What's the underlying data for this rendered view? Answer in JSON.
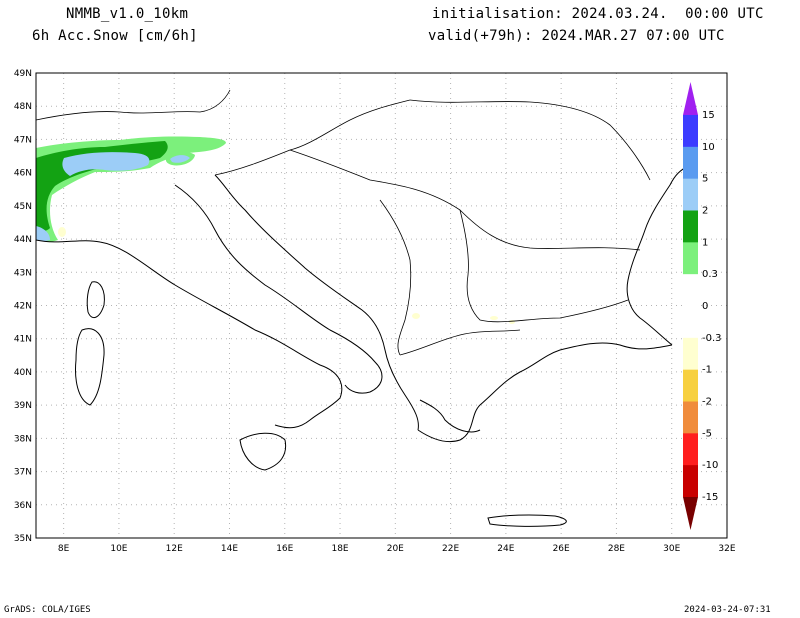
{
  "header": {
    "model": "NMMB_v1.0_10km",
    "variable": "6h Acc.Snow [cm/6h]",
    "init": "initialisation: 2024.03.24.  00:00 UTC",
    "valid": "valid(+79h): 2024.MAR.27 07:00 UTC"
  },
  "axes": {
    "lat_labels": [
      "49N",
      "48N",
      "47N",
      "46N",
      "45N",
      "44N",
      "43N",
      "42N",
      "41N",
      "40N",
      "39N",
      "38N",
      "37N",
      "36N",
      "35N"
    ],
    "lon_labels": [
      "8E",
      "10E",
      "12E",
      "14E",
      "16E",
      "18E",
      "20E",
      "22E",
      "24E",
      "26E",
      "28E",
      "30E",
      "32E"
    ]
  },
  "colorbar": {
    "labels": [
      "15",
      "10",
      "5",
      "2",
      "1",
      "0.3",
      "0",
      "-0.3",
      "-1",
      "-2",
      "-5",
      "-10",
      "-15"
    ],
    "colors": {
      "top_arrow": "#a020f0",
      "c15": "#3c3cff",
      "c10": "#5a9bf0",
      "c5": "#9ccdf7",
      "c2": "#13a213",
      "c1": "#7cf07c",
      "zero": "#ffffff",
      "n03": "#ffffd0",
      "n1": "#f7d040",
      "n2": "#f08c3c",
      "n5": "#ff1e1e",
      "n10": "#c80000",
      "bottom_arrow": "#780000"
    }
  },
  "footer": {
    "credit": "GrADS: COLA/IGES",
    "timestamp": "2024-03-24-07:31"
  }
}
